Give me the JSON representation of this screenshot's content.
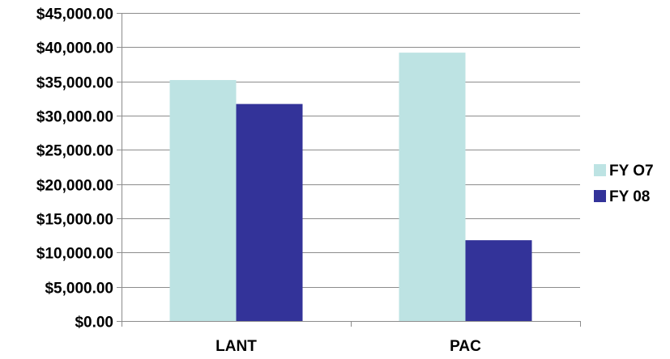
{
  "chart_data": {
    "type": "bar",
    "title": "",
    "xlabel": "",
    "ylabel": "",
    "categories": [
      "LANT",
      "PAC"
    ],
    "series": [
      {
        "name": "FY O7",
        "color": "#bde3e3",
        "values": [
          35200,
          39200
        ]
      },
      {
        "name": "FY 08",
        "color": "#333399",
        "values": [
          31700,
          11800
        ]
      }
    ],
    "ylim": [
      0,
      45000
    ],
    "y_tick_values": [
      0,
      5000,
      10000,
      15000,
      20000,
      25000,
      30000,
      35000,
      40000,
      45000
    ],
    "y_tick_labels": [
      "$0.00",
      "$5,000.00",
      "$10,000.00",
      "$15,000.00",
      "$20,000.00",
      "$25,000.00",
      "$30,000.00",
      "$35,000.00",
      "$40,000.00",
      "$45,000.00"
    ],
    "grid": true,
    "legend_position": "right"
  }
}
